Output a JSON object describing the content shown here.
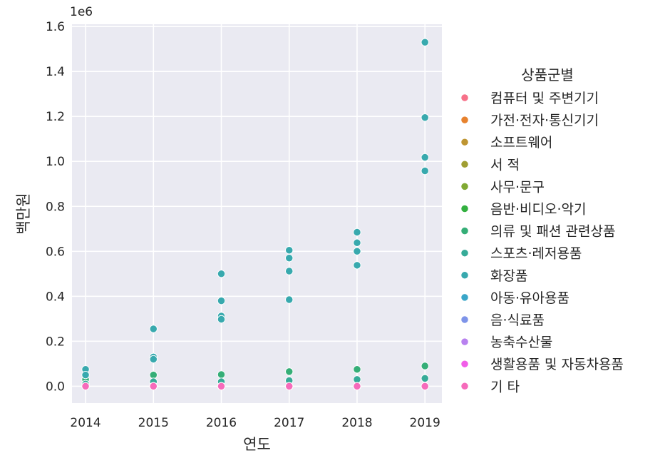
{
  "chart_data": {
    "type": "scatter",
    "xlabel": "연도",
    "ylabel": "백만원",
    "y_offset_label": "1e6",
    "x_ticks": [
      "2014",
      "2015",
      "2016",
      "2017",
      "2018",
      "2019"
    ],
    "y_ticks": [
      "0.0",
      "0.2",
      "0.4",
      "0.6",
      "0.8",
      "1.0",
      "1.2",
      "1.4",
      "1.6"
    ],
    "xlim": [
      2013.8,
      2019.25
    ],
    "ylim": [
      -75000,
      1610000
    ],
    "grid": true,
    "legend_title": "상품군별",
    "legend_position": "right",
    "series": [
      {
        "name": "컴퓨터 및 주변기기",
        "color": "#f77189",
        "x": [
          2014,
          2015,
          2016,
          2017,
          2018,
          2019
        ],
        "y": [
          0,
          0,
          0,
          0,
          0,
          0
        ]
      },
      {
        "name": "가전·전자·통신기기",
        "color": "#e7822e",
        "x": [
          2014,
          2015,
          2016,
          2017,
          2018,
          2019
        ],
        "y": [
          0,
          0,
          0,
          0,
          0,
          0
        ]
      },
      {
        "name": "소프트웨어",
        "color": "#be9532",
        "x": [
          2014,
          2015,
          2016,
          2017,
          2018,
          2019
        ],
        "y": [
          0,
          0,
          0,
          0,
          0,
          0
        ]
      },
      {
        "name": "서 적",
        "color": "#a09e32",
        "x": [
          2014,
          2015,
          2016,
          2017,
          2018,
          2019
        ],
        "y": [
          0,
          0,
          0,
          0,
          0,
          0
        ]
      },
      {
        "name": "사무·문구",
        "color": "#80a933",
        "x": [
          2014,
          2015,
          2016,
          2017,
          2018,
          2019
        ],
        "y": [
          0,
          0,
          0,
          0,
          0,
          0
        ]
      },
      {
        "name": "음반·비디오·악기",
        "color": "#33b040",
        "x": [
          2014,
          2015,
          2016,
          2017,
          2018,
          2019
        ],
        "y": [
          0,
          0,
          0,
          0,
          0,
          0
        ]
      },
      {
        "name": "의류 및 패션 관련상품",
        "color": "#35ae77",
        "x": [
          2014,
          2015,
          2016,
          2017,
          2018,
          2019
        ],
        "y": [
          30000,
          50000,
          52000,
          65000,
          75000,
          90000
        ]
      },
      {
        "name": "스포츠·레저용품",
        "color": "#36ab98",
        "x": [
          2014,
          2015,
          2016,
          2017,
          2018,
          2019
        ],
        "y": [
          10000,
          20000,
          20000,
          25000,
          30000,
          35000
        ]
      },
      {
        "name": "화장품",
        "color": "#38a9ae",
        "x": [
          2014,
          2015,
          2016,
          2017,
          2018,
          2019
        ],
        "y": [
          75000,
          255000,
          500000,
          605000,
          685000,
          1530000
        ]
      },
      {
        "name": "아동·유아용품",
        "color": "#3aa6c8",
        "x": [
          2014,
          2015,
          2016,
          2017,
          2018,
          2019
        ],
        "y": [
          0,
          0,
          0,
          0,
          0,
          0
        ]
      },
      {
        "name": "음·식료품",
        "color": "#7e94e9",
        "x": [
          2014,
          2015,
          2016,
          2017,
          2018,
          2019
        ],
        "y": [
          0,
          0,
          0,
          0,
          0,
          0
        ]
      },
      {
        "name": "농축수산물",
        "color": "#b881ef",
        "x": [
          2014,
          2015,
          2016,
          2017,
          2018,
          2019
        ],
        "y": [
          0,
          0,
          0,
          0,
          0,
          0
        ]
      },
      {
        "name": "생활용품 및 자동차용품",
        "color": "#f15de8",
        "x": [
          2014,
          2015,
          2016,
          2017,
          2018,
          2019
        ],
        "y": [
          0,
          0,
          0,
          0,
          0,
          0
        ]
      },
      {
        "name": "기 타",
        "color": "#f66bbb",
        "x": [
          2014,
          2015,
          2016,
          2017,
          2018,
          2019
        ],
        "y": [
          0,
          0,
          0,
          0,
          0,
          0
        ]
      }
    ],
    "extra_points": {
      "color": "#38a9ae",
      "points": [
        {
          "x": 2014,
          "y": 50000
        },
        {
          "x": 2015,
          "y": 130000
        },
        {
          "x": 2015,
          "y": 120000
        },
        {
          "x": 2016,
          "y": 380000
        },
        {
          "x": 2016,
          "y": 312000
        },
        {
          "x": 2016,
          "y": 298000
        },
        {
          "x": 2017,
          "y": 570000
        },
        {
          "x": 2017,
          "y": 512000
        },
        {
          "x": 2017,
          "y": 385000
        },
        {
          "x": 2018,
          "y": 638000
        },
        {
          "x": 2018,
          "y": 600000
        },
        {
          "x": 2018,
          "y": 538000
        },
        {
          "x": 2019,
          "y": 1195000
        },
        {
          "x": 2019,
          "y": 1018000
        },
        {
          "x": 2019,
          "y": 958000
        }
      ]
    }
  }
}
